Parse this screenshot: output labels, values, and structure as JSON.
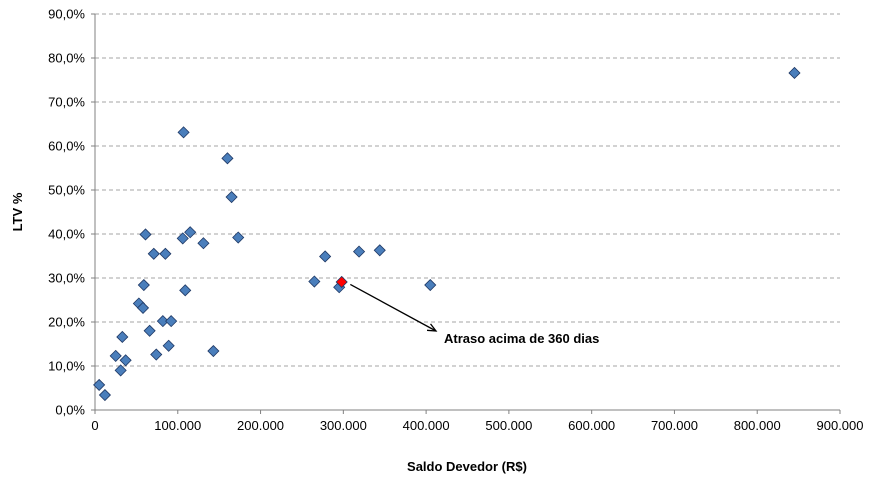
{
  "chart_data": {
    "type": "scatter",
    "title": "",
    "xlabel": "Saldo Devedor (R$)",
    "ylabel": "LTV %",
    "xlim": [
      0,
      900000
    ],
    "ylim": [
      0,
      90
    ],
    "x_ticks": [
      "0",
      "100.000",
      "200.000",
      "300.000",
      "400.000",
      "500.000",
      "600.000",
      "700.000",
      "800.000",
      "900.000"
    ],
    "y_ticks": [
      "0,0%",
      "10,0%",
      "20,0%",
      "30,0%",
      "40,0%",
      "50,0%",
      "60,0%",
      "70,0%",
      "80,0%",
      "90,0%"
    ],
    "grid": true,
    "legend": "none",
    "marker_color": "#4A7EBB",
    "marker_edge": "#1F3864",
    "highlight_color": "#FF0000",
    "series": [
      {
        "points": [
          {
            "x": 5000,
            "y": 5.7
          },
          {
            "x": 12000,
            "y": 3.4
          },
          {
            "x": 25000,
            "y": 12.3
          },
          {
            "x": 31000,
            "y": 9.0
          },
          {
            "x": 33000,
            "y": 16.6
          },
          {
            "x": 37000,
            "y": 11.3
          },
          {
            "x": 53000,
            "y": 24.2
          },
          {
            "x": 58000,
            "y": 23.2
          },
          {
            "x": 59000,
            "y": 28.4
          },
          {
            "x": 61000,
            "y": 39.9
          },
          {
            "x": 66000,
            "y": 18.0
          },
          {
            "x": 71000,
            "y": 35.5
          },
          {
            "x": 74000,
            "y": 12.6
          },
          {
            "x": 82000,
            "y": 20.2
          },
          {
            "x": 85000,
            "y": 35.5
          },
          {
            "x": 89000,
            "y": 14.6
          },
          {
            "x": 92000,
            "y": 20.2
          },
          {
            "x": 106000,
            "y": 39.0
          },
          {
            "x": 107000,
            "y": 63.1
          },
          {
            "x": 109000,
            "y": 27.2
          },
          {
            "x": 115000,
            "y": 40.4
          },
          {
            "x": 131000,
            "y": 37.9
          },
          {
            "x": 143000,
            "y": 13.4
          },
          {
            "x": 160000,
            "y": 57.2
          },
          {
            "x": 165000,
            "y": 48.4
          },
          {
            "x": 173000,
            "y": 39.2
          },
          {
            "x": 265000,
            "y": 29.2
          },
          {
            "x": 278000,
            "y": 34.9
          },
          {
            "x": 295000,
            "y": 27.9
          },
          {
            "x": 298000,
            "y": 29.1,
            "highlight": true
          },
          {
            "x": 319000,
            "y": 36.0
          },
          {
            "x": 344000,
            "y": 36.3
          },
          {
            "x": 405000,
            "y": 28.4
          },
          {
            "x": 845000,
            "y": 76.6
          }
        ]
      }
    ],
    "annotations": [
      {
        "text": "Atraso acima de 360 dias",
        "points_to": {
          "x": 300000,
          "y": 29.0
        }
      }
    ]
  }
}
